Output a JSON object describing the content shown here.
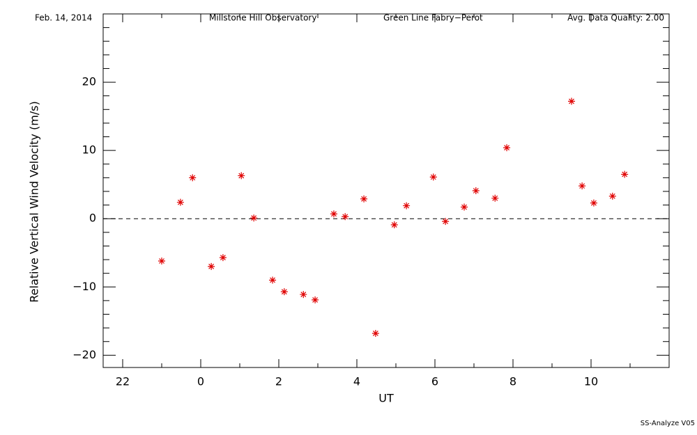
{
  "chart_data": {
    "type": "scatter",
    "header": [
      "Feb. 14, 2014",
      "Millstone Hill Observatory",
      "Green Line Fabry−Perot",
      "Avg. Data Quality: 2.00"
    ],
    "footer": "SS-Analyze V05",
    "x_label": "UT",
    "y_label": "Relative Vertical Wind Velocity (m/s)",
    "color": "#e00000",
    "x": [
      -1.0,
      -0.52,
      -0.21,
      0.27,
      0.57,
      1.04,
      1.36,
      1.84,
      2.14,
      2.63,
      2.93,
      3.41,
      3.7,
      4.18,
      4.48,
      4.96,
      5.27,
      5.96,
      6.27,
      6.75,
      7.05,
      7.54,
      7.84,
      9.5,
      9.77,
      10.07,
      10.55,
      10.86
    ],
    "values": [
      -6.2,
      2.4,
      6.0,
      -7.0,
      -5.7,
      6.3,
      0.1,
      -9.0,
      -10.7,
      -11.1,
      -11.9,
      0.7,
      0.3,
      2.9,
      -16.8,
      -0.9,
      1.9,
      6.1,
      -0.4,
      1.7,
      4.1,
      3.0,
      10.4,
      17.2,
      4.8,
      2.3,
      3.3,
      6.5
    ],
    "xlim": [
      -2.5,
      12
    ],
    "ylim": [
      -21.8,
      30
    ],
    "xticks": [
      {
        "value": -2,
        "label": "22"
      },
      0,
      2,
      4,
      6,
      8,
      10
    ],
    "xminorticks": [
      -1,
      1,
      3,
      5,
      7,
      9,
      11
    ],
    "yticks": [
      {
        "value": -20,
        "label": "−20"
      },
      {
        "value": -10,
        "label": "−10"
      },
      0,
      10,
      20
    ],
    "yminorticks": [
      -18,
      -16,
      -14,
      -12,
      -8,
      -6,
      -4,
      -2,
      2,
      4,
      6,
      8,
      12,
      14,
      16,
      18,
      22,
      24,
      26,
      28
    ],
    "reference_line": 0
  }
}
